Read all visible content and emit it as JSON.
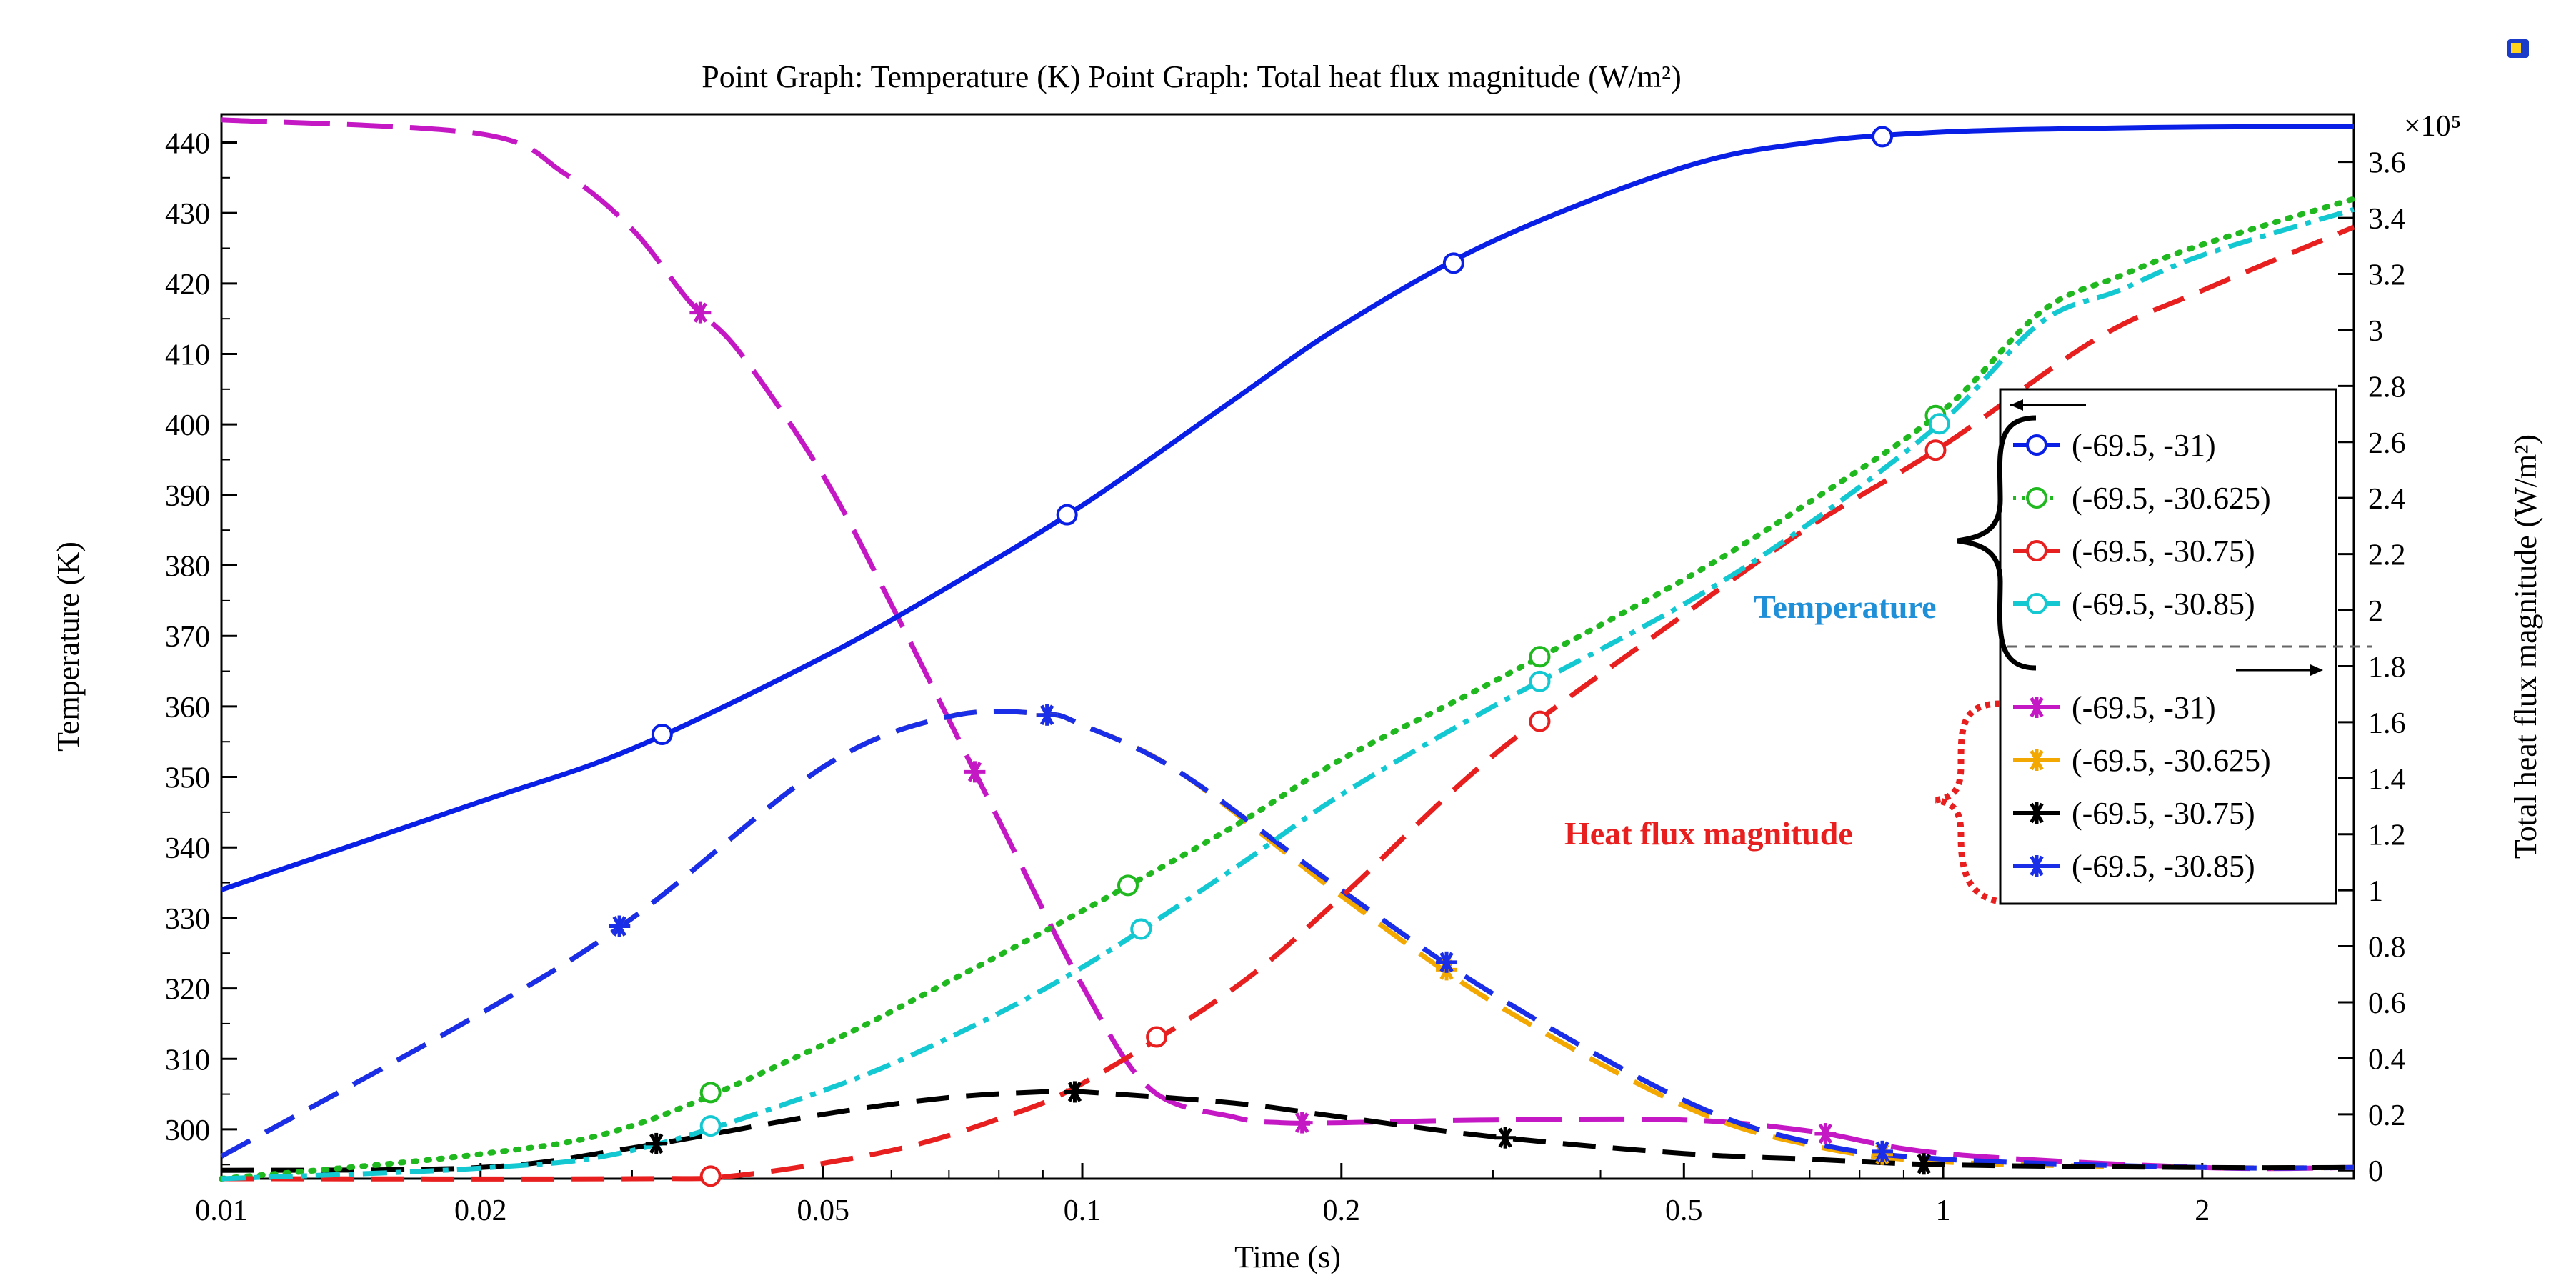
{
  "chart_data": {
    "type": "line",
    "title": "Point Graph: Temperature (K)  Point Graph: Total heat flux magnitude (W/m²)",
    "xlabel": "Time (s)",
    "ylabel": "Temperature (K)",
    "y2label": "Total heat flux magnitude (W/m²)",
    "xscale": "log",
    "xlim": [
      0.01,
      3
    ],
    "ylim": [
      293,
      444
    ],
    "y2lim": [
      -0.03,
      3.77
    ],
    "y2_multiplier": "×10⁵",
    "xticks": [
      {
        "v": 0.01,
        "label": "0.01"
      },
      {
        "v": 0.02,
        "label": "0.02"
      },
      {
        "v": 0.05,
        "label": "0.05"
      },
      {
        "v": 0.1,
        "label": "0.1"
      },
      {
        "v": 0.2,
        "label": "0.2"
      },
      {
        "v": 0.5,
        "label": "0.5"
      },
      {
        "v": 1,
        "label": "1"
      },
      {
        "v": 2,
        "label": "2"
      }
    ],
    "yticks": [
      300,
      310,
      320,
      330,
      340,
      350,
      360,
      370,
      380,
      390,
      400,
      410,
      420,
      430,
      440
    ],
    "y2ticks": [
      {
        "v": 0,
        "label": "0"
      },
      {
        "v": 0.2,
        "label": "0.2"
      },
      {
        "v": 0.4,
        "label": "0.4"
      },
      {
        "v": 0.6,
        "label": "0.6"
      },
      {
        "v": 0.8,
        "label": "0.8"
      },
      {
        "v": 1,
        "label": "1"
      },
      {
        "v": 1.2,
        "label": "1.2"
      },
      {
        "v": 1.4,
        "label": "1.4"
      },
      {
        "v": 1.6,
        "label": "1.6"
      },
      {
        "v": 1.8,
        "label": "1.8"
      },
      {
        "v": 2,
        "label": "2"
      },
      {
        "v": 2.2,
        "label": "2.2"
      },
      {
        "v": 2.4,
        "label": "2.4"
      },
      {
        "v": 2.6,
        "label": "2.6"
      },
      {
        "v": 2.8,
        "label": "2.8"
      },
      {
        "v": 3,
        "label": "3"
      },
      {
        "v": 3.2,
        "label": "3.2"
      },
      {
        "v": 3.4,
        "label": "3.4"
      },
      {
        "v": 3.6,
        "label": "3.6"
      }
    ],
    "series": [
      {
        "name": "(-69.5, -31)",
        "group": "Temperature",
        "axis": "left",
        "color": "#0a1fe6",
        "dash": "",
        "marker": "circle",
        "x": [
          0.01,
          0.02,
          0.03,
          0.05,
          0.07,
          0.1,
          0.15,
          0.2,
          0.3,
          0.5,
          0.7,
          1,
          1.5,
          2,
          3
        ],
        "y": [
          334,
          346.5,
          354,
          367,
          377,
          388.5,
          403.5,
          414,
          426,
          436.5,
          440,
          441.5,
          442,
          442.2,
          442.3
        ],
        "markers_x": [
          0.0325,
          0.096,
          0.27,
          0.85
        ]
      },
      {
        "name": "(-69.5, -30.625)",
        "group": "Temperature",
        "axis": "left",
        "color": "#1fb81f",
        "dash": "4,14",
        "marker": "circle",
        "x": [
          0.01,
          0.02,
          0.03,
          0.05,
          0.07,
          0.1,
          0.15,
          0.2,
          0.3,
          0.5,
          0.7,
          1,
          1.3,
          1.6,
          2,
          3
        ],
        "y": [
          293,
          296.5,
          300.5,
          312,
          321,
          331,
          343,
          352.5,
          363.5,
          378,
          389,
          402,
          416,
          421,
          425.5,
          432
        ],
        "markers_x": [
          0.037,
          0.113,
          0.34,
          0.98
        ]
      },
      {
        "name": "(-69.5, -30.75)",
        "group": "Temperature",
        "axis": "left",
        "color": "#e81f1f",
        "dash": "46,24",
        "marker": "circle",
        "x": [
          0.01,
          0.03,
          0.04,
          0.06,
          0.08,
          0.1,
          0.15,
          0.2,
          0.3,
          0.5,
          0.7,
          1,
          1.5,
          2,
          3
        ],
        "y": [
          293,
          293,
          293.5,
          297,
          301.5,
          306.5,
          320,
          333,
          353,
          373,
          385.5,
          397,
          412,
          419,
          428
        ],
        "markers_x": [
          0.037,
          0.122,
          0.34,
          0.98
        ]
      },
      {
        "name": "(-69.5, -30.85)",
        "group": "Temperature",
        "axis": "left",
        "color": "#14c8d2",
        "dash": "34,12,8,12",
        "marker": "circle",
        "x": [
          0.01,
          0.02,
          0.03,
          0.05,
          0.07,
          0.1,
          0.15,
          0.2,
          0.3,
          0.5,
          0.7,
          1,
          1.3,
          1.6,
          2,
          3
        ],
        "y": [
          293,
          294.5,
          297,
          305.5,
          313,
          323,
          337,
          347.5,
          360,
          374.5,
          386,
          400.5,
          414.5,
          419,
          424,
          430.5
        ],
        "markers_x": [
          0.037,
          0.117,
          0.34,
          0.99
        ]
      },
      {
        "name": "(-69.5, -31)",
        "group": "Heat flux magnitude",
        "axis": "right",
        "color": "#c418c4",
        "dash": "64,24",
        "marker": "star",
        "x": [
          0.01,
          0.02,
          0.025,
          0.03,
          0.035,
          0.04,
          0.05,
          0.06,
          0.08,
          0.1,
          0.12,
          0.15,
          0.17,
          0.2,
          0.3,
          0.5,
          0.7,
          1,
          2,
          3
        ],
        "y": [
          3.75,
          3.7,
          3.56,
          3.36,
          3.1,
          2.92,
          2.48,
          2.02,
          1.25,
          0.66,
          0.29,
          0.19,
          0.17,
          0.17,
          0.18,
          0.18,
          0.14,
          0.06,
          0.01,
          0.01
        ],
        "markers_x": [
          0.036,
          0.075,
          0.18,
          0.73
        ]
      },
      {
        "name": "(-69.5, -30.625)",
        "group": "Heat flux magnitude",
        "axis": "right",
        "color": "#f2a800",
        "dash": "46,24",
        "marker": "star",
        "x": [
          0.01,
          0.02,
          0.03,
          0.05,
          0.07,
          0.09,
          0.1,
          0.13,
          0.2,
          0.3,
          0.5,
          0.7,
          1,
          2,
          3
        ],
        "y": [
          0.05,
          0.56,
          0.9,
          1.44,
          1.62,
          1.63,
          1.59,
          1.42,
          0.98,
          0.6,
          0.23,
          0.09,
          0.03,
          0.01,
          0.01
        ],
        "markers_x": [
          0.029,
          0.091,
          0.265,
          0.85
        ]
      },
      {
        "name": "(-69.5, -30.75)",
        "group": "Heat flux magnitude",
        "axis": "right",
        "color": "#000000",
        "dash": "46,24",
        "marker": "star",
        "x": [
          0.01,
          0.02,
          0.03,
          0.05,
          0.07,
          0.09,
          0.1,
          0.15,
          0.2,
          0.3,
          0.5,
          0.7,
          1,
          2,
          3
        ],
        "y": [
          0,
          0.01,
          0.08,
          0.2,
          0.26,
          0.28,
          0.28,
          0.24,
          0.19,
          0.12,
          0.06,
          0.04,
          0.02,
          0.01,
          0.01
        ],
        "markers_x": [
          0.032,
          0.098,
          0.31,
          0.95
        ]
      },
      {
        "name": "(-69.5, -30.85)",
        "group": "Heat flux magnitude",
        "axis": "right",
        "color": "#1a2ee8",
        "dash": "46,24",
        "marker": "star",
        "x": [
          0.01,
          0.02,
          0.03,
          0.05,
          0.07,
          0.09,
          0.1,
          0.13,
          0.2,
          0.3,
          0.5,
          0.7,
          1,
          2,
          3
        ],
        "y": [
          0.05,
          0.56,
          0.9,
          1.44,
          1.62,
          1.63,
          1.59,
          1.42,
          1.0,
          0.63,
          0.25,
          0.1,
          0.04,
          0.01,
          0.01
        ],
        "markers_x": [
          0.029,
          0.091,
          0.265,
          0.85
        ]
      }
    ],
    "legend_position": "right",
    "annotations": {
      "temperature": "Temperature",
      "heat_flux": "Heat flux magnitude"
    }
  }
}
